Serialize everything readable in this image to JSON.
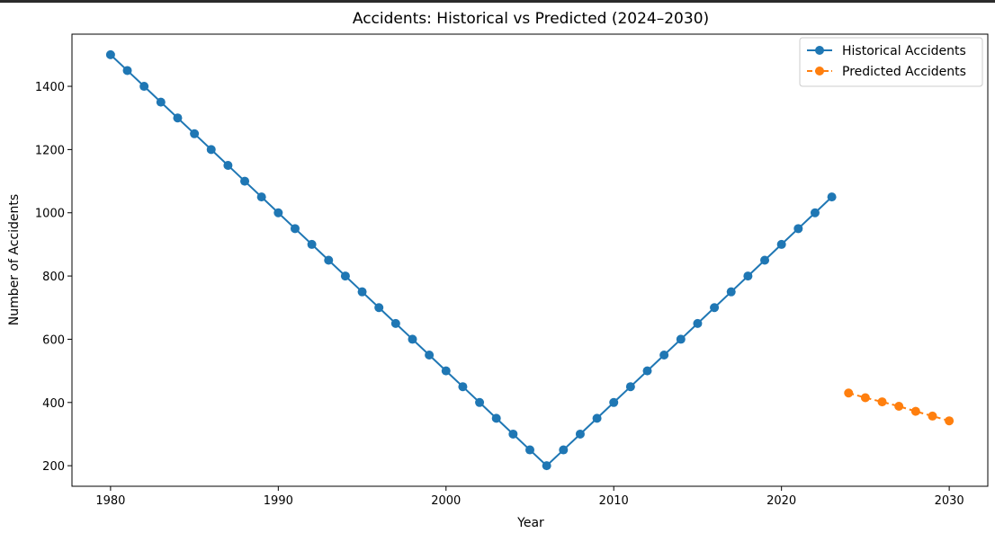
{
  "chart_data": {
    "type": "line",
    "title": "Accidents: Historical vs Predicted (2024–2030)",
    "xlabel": "Year",
    "ylabel": "Number of Accidents",
    "xlim": [
      1977.7,
      2032.3
    ],
    "ylim": [
      135,
      1565
    ],
    "xticks": [
      1980,
      1990,
      2000,
      2010,
      2020,
      2030
    ],
    "yticks": [
      200,
      400,
      600,
      800,
      1000,
      1200,
      1400
    ],
    "grid": false,
    "legend_position": "top-right",
    "series": [
      {
        "name": "Historical Accidents",
        "color": "#1f77b4",
        "line_style": "solid",
        "marker": "circle",
        "x": [
          1980,
          1981,
          1982,
          1983,
          1984,
          1985,
          1986,
          1987,
          1988,
          1989,
          1990,
          1991,
          1992,
          1993,
          1994,
          1995,
          1996,
          1997,
          1998,
          1999,
          2000,
          2001,
          2002,
          2003,
          2004,
          2005,
          2006,
          2007,
          2008,
          2009,
          2010,
          2011,
          2012,
          2013,
          2014,
          2015,
          2016,
          2017,
          2018,
          2019,
          2020,
          2021,
          2022,
          2023
        ],
        "values": [
          1500,
          1450,
          1400,
          1350,
          1300,
          1250,
          1200,
          1150,
          1100,
          1050,
          1000,
          950,
          900,
          850,
          800,
          750,
          700,
          650,
          600,
          550,
          500,
          450,
          400,
          350,
          300,
          250,
          200,
          250,
          300,
          350,
          400,
          450,
          500,
          550,
          600,
          650,
          700,
          750,
          800,
          850,
          900,
          950,
          1000,
          1050
        ]
      },
      {
        "name": "Predicted Accidents",
        "color": "#ff7f0e",
        "line_style": "dashed",
        "marker": "circle",
        "x": [
          2024,
          2025,
          2026,
          2027,
          2028,
          2029,
          2030
        ],
        "values": [
          430,
          415,
          402,
          388,
          372,
          357,
          342
        ]
      }
    ]
  }
}
